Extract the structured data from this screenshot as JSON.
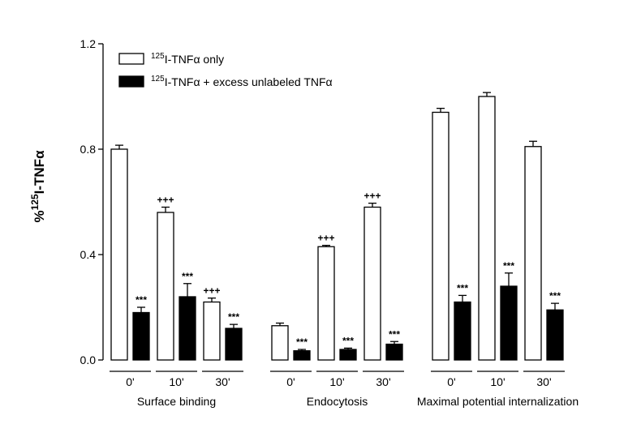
{
  "chart_data": {
    "type": "bar",
    "ylabel": {
      "prefix": "%",
      "sup": "125",
      "suffix": "I-TNFα"
    },
    "ylim": [
      0,
      1.2
    ],
    "yticks": [
      "0.0",
      "0.4",
      "0.8",
      "1.2"
    ],
    "legend": {
      "placement": "top-left",
      "entries": [
        {
          "sup": "125",
          "text": "I-TNFα only"
        },
        {
          "sup": "125",
          "text": "I-TNFα + excess unlabeled TNFα"
        }
      ]
    },
    "colors": {
      "open": "#ffffff",
      "filled": "#000000",
      "stroke": "#000000"
    },
    "groups": [
      {
        "label": "Surface binding",
        "timepoints": [
          {
            "time": "0'",
            "open": 0.8,
            "open_err": 0.015,
            "open_sig": "",
            "filled": 0.18,
            "filled_err": 0.02,
            "filled_sig": "***"
          },
          {
            "time": "10'",
            "open": 0.56,
            "open_err": 0.02,
            "open_sig": "+++",
            "filled": 0.24,
            "filled_err": 0.05,
            "filled_sig": "***"
          },
          {
            "time": "30'",
            "open": 0.22,
            "open_err": 0.015,
            "open_sig": "+++",
            "filled": 0.12,
            "filled_err": 0.015,
            "filled_sig": "***"
          }
        ]
      },
      {
        "label": "Endocytosis",
        "timepoints": [
          {
            "time": "0'",
            "open": 0.13,
            "open_err": 0.01,
            "open_sig": "",
            "filled": 0.035,
            "filled_err": 0.005,
            "filled_sig": "***"
          },
          {
            "time": "10'",
            "open": 0.43,
            "open_err": 0.005,
            "open_sig": "+++",
            "filled": 0.04,
            "filled_err": 0.005,
            "filled_sig": "***"
          },
          {
            "time": "30'",
            "open": 0.58,
            "open_err": 0.015,
            "open_sig": "+++",
            "filled": 0.06,
            "filled_err": 0.01,
            "filled_sig": "***"
          }
        ]
      },
      {
        "label": "Maximal potential internalization",
        "timepoints": [
          {
            "time": "0'",
            "open": 0.94,
            "open_err": 0.015,
            "open_sig": "",
            "filled": 0.22,
            "filled_err": 0.025,
            "filled_sig": "***"
          },
          {
            "time": "10'",
            "open": 1.0,
            "open_err": 0.015,
            "open_sig": "",
            "filled": 0.28,
            "filled_err": 0.05,
            "filled_sig": "***"
          },
          {
            "time": "30'",
            "open": 0.81,
            "open_err": 0.02,
            "open_sig": "",
            "filled": 0.19,
            "filled_err": 0.025,
            "filled_sig": "***"
          }
        ]
      }
    ]
  }
}
